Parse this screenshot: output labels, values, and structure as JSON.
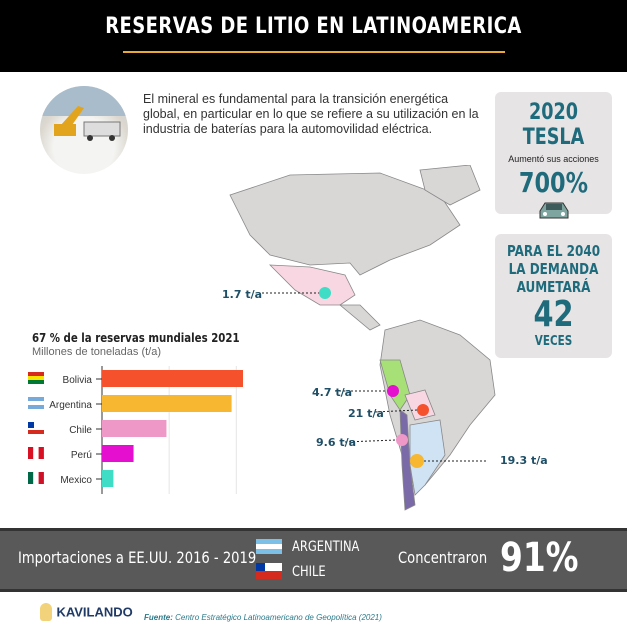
{
  "header": {
    "title": "RESERVAS DE LITIO EN LATINOAMERICA"
  },
  "intro": {
    "text": "El mineral es fundamental para la transición energética global, en particular en lo que se refiere a su utilización en la industria de baterías para la automovilidad eléctrica."
  },
  "tesla_card": {
    "title": "2020 TESLA",
    "subtitle": "Aumentó sus acciones",
    "value": "700%",
    "icon": "car-icon"
  },
  "demand_card": {
    "line1": "PARA EL 2040",
    "line2": "LA DEMANDA",
    "line3": "AUMETARÁ",
    "value": "42",
    "unit": "VECES"
  },
  "map_labels": {
    "mexico": "1.7 t/a",
    "peru": "4.7 t/a",
    "bolivia": "21 t/a",
    "chile": "9.6 t/a",
    "argentina": "19.3 t/a"
  },
  "chart_data": {
    "type": "bar",
    "orientation": "horizontal",
    "title": "67 % de la reservas mundiales 2021",
    "subtitle": "Millones de toneladas (t/a)",
    "categories": [
      "Bolivia",
      "Argentina",
      "Chile",
      "Perú",
      "Mexico"
    ],
    "values": [
      21,
      19.3,
      9.6,
      4.7,
      1.7
    ],
    "colors": [
      "#f4512c",
      "#f7b731",
      "#ee98c8",
      "#e40fcf",
      "#3fddc6"
    ],
    "xlim": [
      0,
      21
    ],
    "grid": true,
    "gridlines": [
      10,
      20
    ]
  },
  "bottom": {
    "label": "Importaciones  a EE.UU. 2016 - 2019",
    "countries": [
      "ARGENTINA",
      "CHILE"
    ],
    "verb": "Concentraron",
    "value": "91%"
  },
  "footer": {
    "logo": "KAVILANDO",
    "source_label": "Fuente:",
    "source": "Centro Estratégico  Latinoamericano  de Geopolítica (2021)"
  }
}
